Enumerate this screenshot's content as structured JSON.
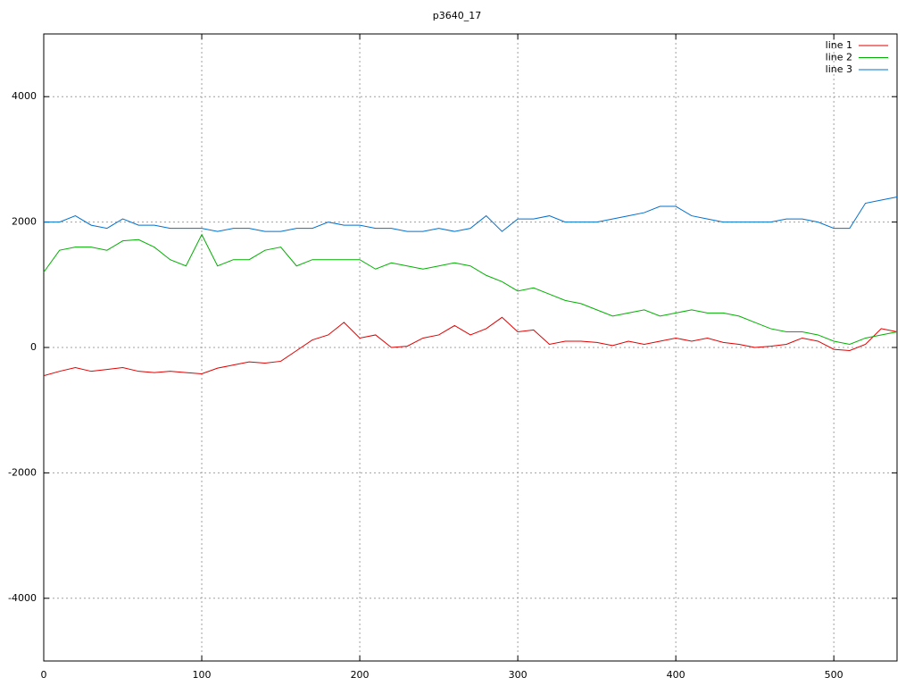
{
  "chart_data": {
    "type": "line",
    "title": "p3640_17",
    "x": [
      0,
      10,
      20,
      30,
      40,
      50,
      60,
      70,
      80,
      90,
      100,
      110,
      120,
      130,
      140,
      150,
      160,
      170,
      180,
      190,
      200,
      210,
      220,
      230,
      240,
      250,
      260,
      270,
      280,
      290,
      300,
      310,
      320,
      330,
      340,
      350,
      360,
      370,
      380,
      390,
      400,
      410,
      420,
      430,
      440,
      450,
      460,
      470,
      480,
      490,
      500,
      510,
      520,
      530,
      540
    ],
    "series": [
      {
        "name": "line 1",
        "color": "#e00000",
        "values": [
          -450,
          -380,
          -320,
          -380,
          -350,
          -320,
          -380,
          -400,
          -380,
          -400,
          -420,
          -330,
          -280,
          -230,
          -250,
          -220,
          -50,
          120,
          200,
          400,
          150,
          200,
          0,
          20,
          150,
          200,
          350,
          200,
          300,
          480,
          250,
          280,
          50,
          100,
          100,
          80,
          30,
          100,
          50,
          100,
          150,
          100,
          150,
          80,
          50,
          0,
          20,
          50,
          150,
          100,
          -30,
          -50,
          50,
          300,
          250
        ]
      },
      {
        "name": "line 2",
        "color": "#00b000",
        "values": [
          1200,
          1550,
          1600,
          1600,
          1550,
          1700,
          1720,
          1600,
          1400,
          1300,
          1800,
          1300,
          1400,
          1400,
          1550,
          1600,
          1300,
          1400,
          1400,
          1400,
          1400,
          1250,
          1350,
          1300,
          1250,
          1300,
          1350,
          1300,
          1150,
          1050,
          900,
          950,
          850,
          750,
          700,
          600,
          500,
          550,
          600,
          500,
          550,
          600,
          550,
          550,
          500,
          400,
          300,
          250,
          250,
          200,
          100,
          50,
          150,
          200,
          250
        ]
      },
      {
        "name": "line 3",
        "color": "#0070d0",
        "values": [
          2000,
          2000,
          2100,
          1950,
          1900,
          2050,
          1950,
          1950,
          1900,
          1900,
          1900,
          1850,
          1900,
          1900,
          1850,
          1850,
          1900,
          1900,
          2000,
          1950,
          1950,
          1900,
          1900,
          1850,
          1850,
          1900,
          1850,
          1900,
          2100,
          1850,
          2050,
          2050,
          2100,
          2000,
          2000,
          2000,
          2050,
          2100,
          2150,
          2250,
          2250,
          2100,
          2050,
          2000,
          2000,
          2000,
          2000,
          2050,
          2050,
          2000,
          1900,
          1900,
          2300,
          2350,
          2400
        ]
      }
    ],
    "xlim": [
      0,
      540
    ],
    "xticks": [
      0,
      100,
      200,
      300,
      400,
      500
    ],
    "ylim": [
      -5000,
      5000
    ],
    "yticks": [
      -4000,
      -2000,
      0,
      2000,
      4000
    ],
    "grid": true,
    "legend": "top-right"
  }
}
